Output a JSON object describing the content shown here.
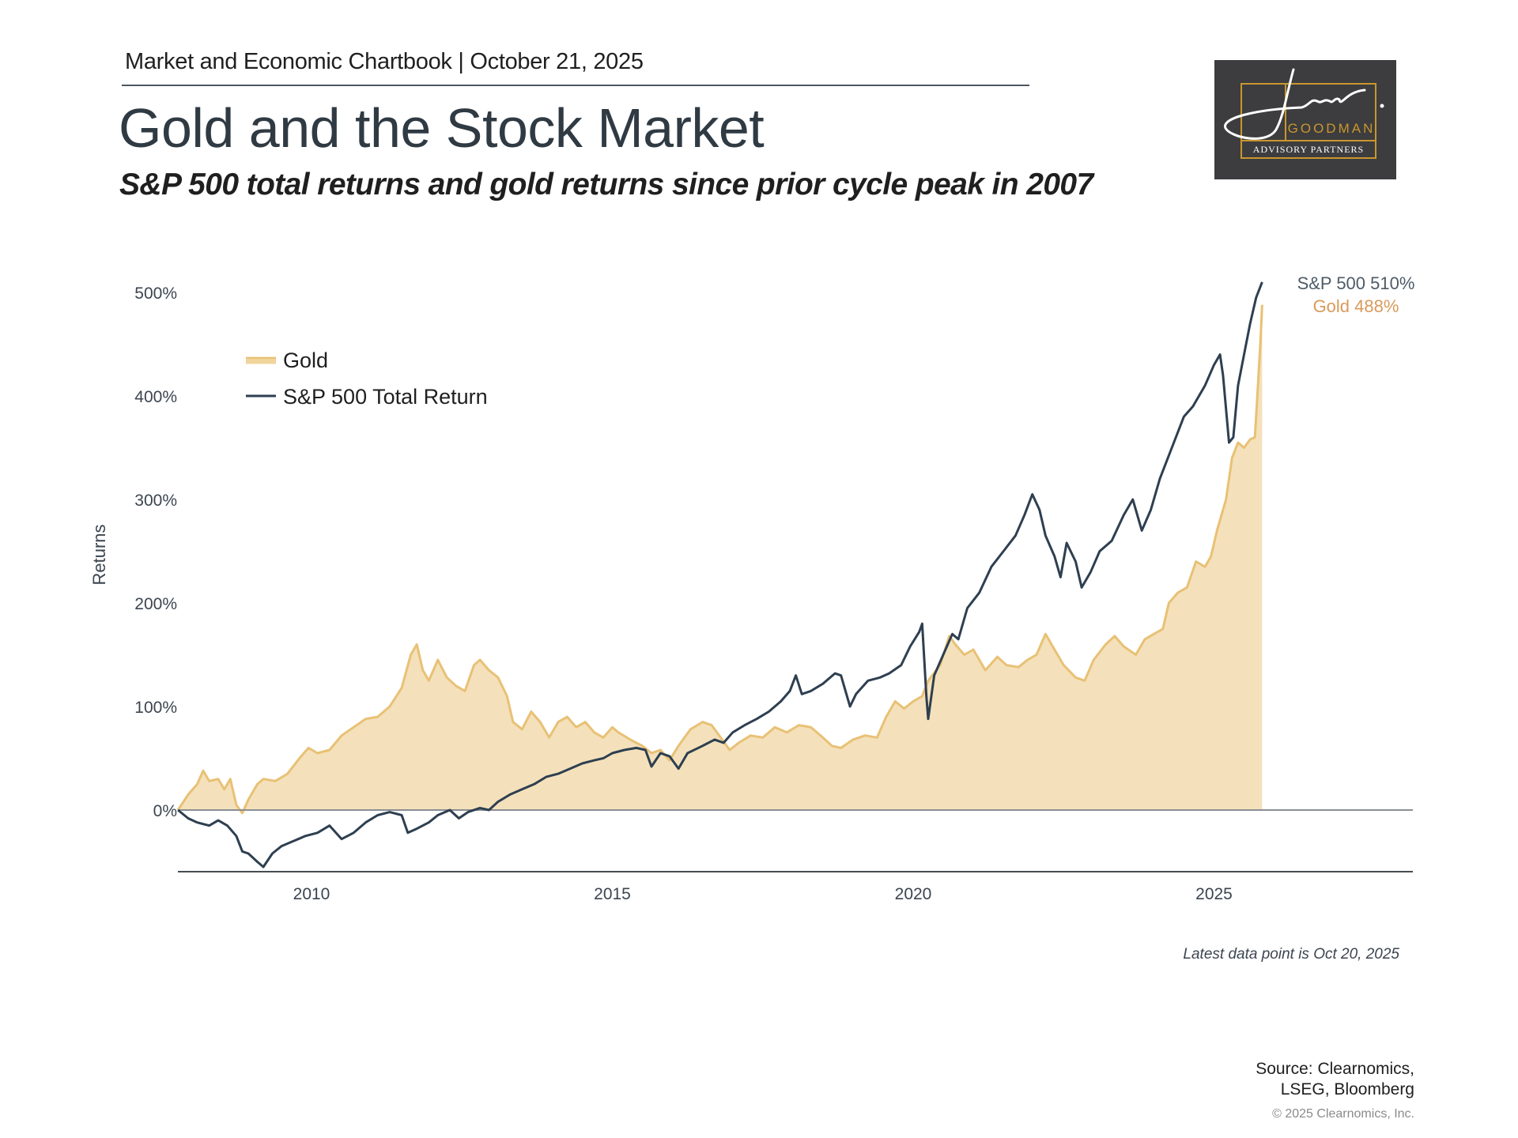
{
  "header": {
    "line": "Market and Economic Chartbook | October 21, 2025",
    "title": "Gold and the Stock Market",
    "subtitle": "S&P 500 total returns and gold returns since prior cycle peak in 2007"
  },
  "logo": {
    "script": "Jon C.",
    "name": "GOODMAN",
    "tagline": "ADVISORY PARTNERS",
    "colors": {
      "background": "#3d3d3f",
      "accent": "#c9962e",
      "script": "#ffffff"
    }
  },
  "chart_data": {
    "type": "area",
    "title": "Gold and the Stock Market",
    "subtitle": "S&P 500 total returns and gold returns since prior cycle peak in 2007",
    "xlabel": "",
    "ylabel": "Returns",
    "xlim": [
      2007.78,
      2028.0
    ],
    "ylim": [
      -60,
      520
    ],
    "x_ticks": [
      2010,
      2015,
      2020,
      2025
    ],
    "x_tick_labels": [
      "2010",
      "2015",
      "2020",
      "2025"
    ],
    "y_ticks": [
      0,
      100,
      200,
      300,
      400,
      500
    ],
    "y_tick_labels": [
      "0%",
      "100%",
      "200%",
      "300%",
      "400%",
      "500%"
    ],
    "grid": false,
    "legend": {
      "placement": "top-left",
      "entries": [
        "Gold",
        "S&P 500 Total Return"
      ]
    },
    "series": [
      {
        "name": "Gold",
        "kind": "area",
        "color": "#e8c175",
        "fill": "#f4e1bb",
        "points": [
          [
            2007.78,
            0
          ],
          [
            2007.95,
            15
          ],
          [
            2008.1,
            25
          ],
          [
            2008.2,
            38
          ],
          [
            2008.3,
            28
          ],
          [
            2008.45,
            30
          ],
          [
            2008.55,
            20
          ],
          [
            2008.65,
            30
          ],
          [
            2008.75,
            5
          ],
          [
            2008.85,
            -3
          ],
          [
            2008.95,
            10
          ],
          [
            2009.1,
            25
          ],
          [
            2009.2,
            30
          ],
          [
            2009.4,
            28
          ],
          [
            2009.6,
            35
          ],
          [
            2009.8,
            50
          ],
          [
            2009.95,
            60
          ],
          [
            2010.1,
            55
          ],
          [
            2010.3,
            58
          ],
          [
            2010.5,
            72
          ],
          [
            2010.7,
            80
          ],
          [
            2010.9,
            88
          ],
          [
            2011.1,
            90
          ],
          [
            2011.3,
            100
          ],
          [
            2011.5,
            118
          ],
          [
            2011.65,
            150
          ],
          [
            2011.75,
            160
          ],
          [
            2011.85,
            135
          ],
          [
            2011.95,
            125
          ],
          [
            2012.1,
            145
          ],
          [
            2012.25,
            128
          ],
          [
            2012.4,
            120
          ],
          [
            2012.55,
            115
          ],
          [
            2012.7,
            140
          ],
          [
            2012.8,
            145
          ],
          [
            2012.95,
            135
          ],
          [
            2013.1,
            128
          ],
          [
            2013.25,
            110
          ],
          [
            2013.35,
            85
          ],
          [
            2013.5,
            78
          ],
          [
            2013.65,
            95
          ],
          [
            2013.8,
            85
          ],
          [
            2013.95,
            70
          ],
          [
            2014.1,
            85
          ],
          [
            2014.25,
            90
          ],
          [
            2014.4,
            80
          ],
          [
            2014.55,
            85
          ],
          [
            2014.7,
            75
          ],
          [
            2014.85,
            70
          ],
          [
            2015.0,
            80
          ],
          [
            2015.1,
            75
          ],
          [
            2015.3,
            68
          ],
          [
            2015.5,
            62
          ],
          [
            2015.65,
            55
          ],
          [
            2015.8,
            58
          ],
          [
            2015.95,
            48
          ],
          [
            2016.1,
            62
          ],
          [
            2016.3,
            78
          ],
          [
            2016.5,
            85
          ],
          [
            2016.65,
            82
          ],
          [
            2016.8,
            70
          ],
          [
            2016.95,
            58
          ],
          [
            2017.1,
            65
          ],
          [
            2017.3,
            72
          ],
          [
            2017.5,
            70
          ],
          [
            2017.7,
            80
          ],
          [
            2017.9,
            75
          ],
          [
            2018.1,
            82
          ],
          [
            2018.3,
            80
          ],
          [
            2018.5,
            70
          ],
          [
            2018.65,
            62
          ],
          [
            2018.8,
            60
          ],
          [
            2019.0,
            68
          ],
          [
            2019.2,
            72
          ],
          [
            2019.4,
            70
          ],
          [
            2019.55,
            90
          ],
          [
            2019.7,
            105
          ],
          [
            2019.85,
            98
          ],
          [
            2020.0,
            105
          ],
          [
            2020.15,
            110
          ],
          [
            2020.25,
            125
          ],
          [
            2020.45,
            140
          ],
          [
            2020.6,
            168
          ],
          [
            2020.7,
            160
          ],
          [
            2020.85,
            150
          ],
          [
            2021.0,
            155
          ],
          [
            2021.2,
            135
          ],
          [
            2021.4,
            148
          ],
          [
            2021.55,
            140
          ],
          [
            2021.75,
            138
          ],
          [
            2021.9,
            145
          ],
          [
            2022.05,
            150
          ],
          [
            2022.2,
            170
          ],
          [
            2022.35,
            155
          ],
          [
            2022.5,
            140
          ],
          [
            2022.7,
            128
          ],
          [
            2022.85,
            125
          ],
          [
            2023.0,
            145
          ],
          [
            2023.2,
            160
          ],
          [
            2023.35,
            168
          ],
          [
            2023.5,
            158
          ],
          [
            2023.7,
            150
          ],
          [
            2023.85,
            165
          ],
          [
            2024.0,
            170
          ],
          [
            2024.15,
            175
          ],
          [
            2024.25,
            200
          ],
          [
            2024.4,
            210
          ],
          [
            2024.55,
            215
          ],
          [
            2024.7,
            240
          ],
          [
            2024.85,
            235
          ],
          [
            2024.95,
            245
          ],
          [
            2025.05,
            270
          ],
          [
            2025.2,
            300
          ],
          [
            2025.3,
            340
          ],
          [
            2025.4,
            355
          ],
          [
            2025.5,
            350
          ],
          [
            2025.6,
            358
          ],
          [
            2025.68,
            360
          ],
          [
            2025.72,
            400
          ],
          [
            2025.77,
            450
          ],
          [
            2025.8,
            488
          ]
        ],
        "end_label": "Gold 488%",
        "end_value": 488
      },
      {
        "name": "S&P 500 Total Return",
        "kind": "line",
        "color": "#2e3f50",
        "points": [
          [
            2007.78,
            0
          ],
          [
            2007.95,
            -8
          ],
          [
            2008.1,
            -12
          ],
          [
            2008.3,
            -15
          ],
          [
            2008.45,
            -10
          ],
          [
            2008.6,
            -15
          ],
          [
            2008.75,
            -25
          ],
          [
            2008.85,
            -40
          ],
          [
            2008.95,
            -42
          ],
          [
            2009.1,
            -50
          ],
          [
            2009.2,
            -55
          ],
          [
            2009.35,
            -42
          ],
          [
            2009.5,
            -35
          ],
          [
            2009.7,
            -30
          ],
          [
            2009.9,
            -25
          ],
          [
            2010.1,
            -22
          ],
          [
            2010.3,
            -15
          ],
          [
            2010.5,
            -28
          ],
          [
            2010.7,
            -22
          ],
          [
            2010.9,
            -12
          ],
          [
            2011.1,
            -5
          ],
          [
            2011.3,
            -2
          ],
          [
            2011.5,
            -5
          ],
          [
            2011.6,
            -22
          ],
          [
            2011.75,
            -18
          ],
          [
            2011.95,
            -12
          ],
          [
            2012.1,
            -5
          ],
          [
            2012.3,
            0
          ],
          [
            2012.45,
            -8
          ],
          [
            2012.6,
            -2
          ],
          [
            2012.8,
            2
          ],
          [
            2012.95,
            0
          ],
          [
            2013.1,
            8
          ],
          [
            2013.3,
            15
          ],
          [
            2013.5,
            20
          ],
          [
            2013.7,
            25
          ],
          [
            2013.9,
            32
          ],
          [
            2014.1,
            35
          ],
          [
            2014.3,
            40
          ],
          [
            2014.5,
            45
          ],
          [
            2014.7,
            48
          ],
          [
            2014.85,
            50
          ],
          [
            2015.0,
            55
          ],
          [
            2015.2,
            58
          ],
          [
            2015.4,
            60
          ],
          [
            2015.55,
            58
          ],
          [
            2015.65,
            42
          ],
          [
            2015.8,
            55
          ],
          [
            2015.95,
            52
          ],
          [
            2016.1,
            40
          ],
          [
            2016.25,
            55
          ],
          [
            2016.5,
            62
          ],
          [
            2016.7,
            68
          ],
          [
            2016.85,
            65
          ],
          [
            2017.0,
            75
          ],
          [
            2017.2,
            82
          ],
          [
            2017.4,
            88
          ],
          [
            2017.6,
            95
          ],
          [
            2017.8,
            105
          ],
          [
            2017.95,
            115
          ],
          [
            2018.05,
            130
          ],
          [
            2018.15,
            112
          ],
          [
            2018.3,
            115
          ],
          [
            2018.5,
            122
          ],
          [
            2018.7,
            132
          ],
          [
            2018.8,
            130
          ],
          [
            2018.95,
            100
          ],
          [
            2019.05,
            112
          ],
          [
            2019.25,
            125
          ],
          [
            2019.45,
            128
          ],
          [
            2019.6,
            132
          ],
          [
            2019.8,
            140
          ],
          [
            2019.95,
            158
          ],
          [
            2020.1,
            172
          ],
          [
            2020.15,
            180
          ],
          [
            2020.22,
            110
          ],
          [
            2020.25,
            88
          ],
          [
            2020.35,
            130
          ],
          [
            2020.5,
            150
          ],
          [
            2020.65,
            170
          ],
          [
            2020.75,
            165
          ],
          [
            2020.9,
            195
          ],
          [
            2021.1,
            210
          ],
          [
            2021.3,
            235
          ],
          [
            2021.5,
            250
          ],
          [
            2021.7,
            265
          ],
          [
            2021.85,
            285
          ],
          [
            2021.98,
            305
          ],
          [
            2022.1,
            290
          ],
          [
            2022.2,
            265
          ],
          [
            2022.35,
            245
          ],
          [
            2022.45,
            225
          ],
          [
            2022.55,
            258
          ],
          [
            2022.7,
            240
          ],
          [
            2022.8,
            215
          ],
          [
            2022.95,
            230
          ],
          [
            2023.1,
            250
          ],
          [
            2023.3,
            260
          ],
          [
            2023.5,
            285
          ],
          [
            2023.65,
            300
          ],
          [
            2023.8,
            270
          ],
          [
            2023.95,
            290
          ],
          [
            2024.1,
            320
          ],
          [
            2024.3,
            350
          ],
          [
            2024.5,
            380
          ],
          [
            2024.65,
            390
          ],
          [
            2024.85,
            410
          ],
          [
            2025.0,
            430
          ],
          [
            2025.1,
            440
          ],
          [
            2025.15,
            420
          ],
          [
            2025.25,
            355
          ],
          [
            2025.32,
            360
          ],
          [
            2025.4,
            410
          ],
          [
            2025.5,
            440
          ],
          [
            2025.6,
            470
          ],
          [
            2025.7,
            495
          ],
          [
            2025.8,
            510
          ]
        ],
        "end_label": "S&P 500 510%",
        "end_value": 510
      }
    ],
    "annotations": [
      "S&P 500 510%",
      "Gold 488%",
      "Latest data point is Oct 20, 2025"
    ]
  },
  "footer": {
    "latest": "Latest data point is Oct 20, 2025",
    "source_line1": "Source: Clearnomics,",
    "source_line2": "LSEG, Bloomberg",
    "copyright": "© 2025 Clearnomics, Inc."
  },
  "colors": {
    "gold_line": "#e8c175",
    "gold_fill": "#f4e1bb",
    "sp500_line": "#2e3f50",
    "gold_label": "#d99a5b",
    "sp500_label": "#4d5b68",
    "axis": "#444c53",
    "tick_text": "#3b4550"
  }
}
